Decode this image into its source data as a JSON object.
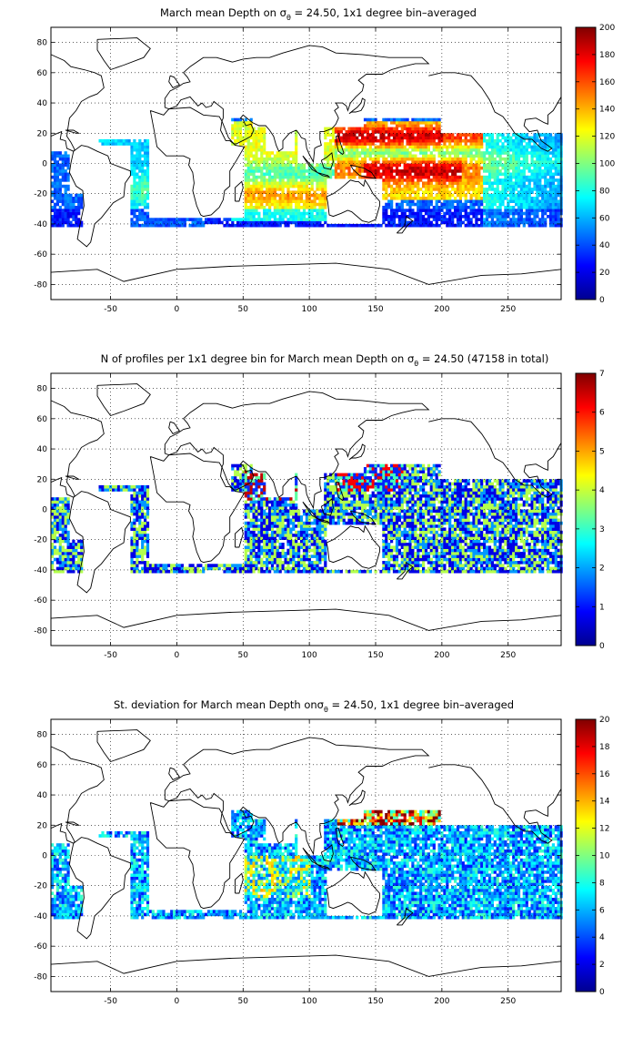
{
  "figure": {
    "panels": [
      {
        "id": "mean-depth",
        "title_prefix": "March mean Depth on ",
        "sigma": "σ",
        "sigma_sub": "θ",
        "title_suffix": " = 24.50, 1x1 degree bin–averaged",
        "colorbar": {
          "min": 0,
          "max": 200,
          "ticks": [
            "0",
            "20",
            "40",
            "60",
            "80",
            "100",
            "120",
            "140",
            "160",
            "180",
            "200"
          ]
        }
      },
      {
        "id": "profile-count",
        "title_prefix": "N of profiles per 1x1 degree bin for March mean Depth on ",
        "sigma": "σ",
        "sigma_sub": "θ",
        "title_suffix": " = 24.50 (47158 in total)",
        "colorbar": {
          "min": 0,
          "max": 7,
          "ticks": [
            "0",
            "1",
            "2",
            "3",
            "4",
            "5",
            "6",
            "7"
          ]
        }
      },
      {
        "id": "std-deviation",
        "title_prefix": "St. deviation for March mean Depth on",
        "sigma": "σ",
        "sigma_sub": "θ",
        "title_suffix": " = 24.50, 1x1 degree bin–averaged",
        "colorbar": {
          "min": 0,
          "max": 20,
          "ticks": [
            "0",
            "2",
            "4",
            "6",
            "8",
            "10",
            "12",
            "14",
            "16",
            "18",
            "20"
          ]
        }
      }
    ],
    "axes": {
      "x_ticks": [
        "-50",
        "0",
        "50",
        "100",
        "150",
        "200",
        "250"
      ],
      "x_values": [
        -50,
        0,
        50,
        100,
        150,
        200,
        250
      ],
      "y_ticks": [
        "80",
        "60",
        "40",
        "20",
        "0",
        "-20",
        "-40",
        "-60",
        "-80"
      ],
      "y_values": [
        80,
        60,
        40,
        20,
        0,
        -20,
        -40,
        -60,
        -80
      ],
      "xlim": [
        -95,
        290
      ],
      "ylim": [
        -90,
        90
      ],
      "grid": "dotted"
    },
    "colormap": "jet"
  }
}
